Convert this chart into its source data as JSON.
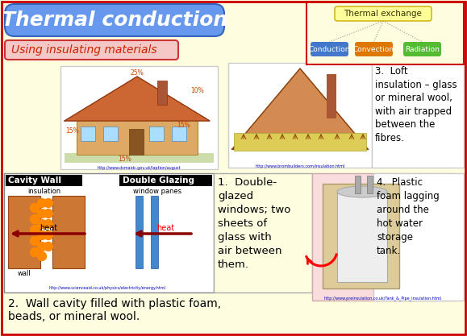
{
  "bg_color": "#FEFDE0",
  "title": "Thermal conduction",
  "title_bg": "#6699EE",
  "title_fg": "#FFFFFF",
  "subtitle": "Using insulating materials",
  "subtitle_bg": "#F5C8C8",
  "subtitle_fg": "#CC2200",
  "subtitle_border": "#CC3333",
  "thermal_exchange_label": "Thermal exchange",
  "thermal_exchange_bg": "#FFFF99",
  "thermal_exchange_border": "#CCAA00",
  "conduction_label": "Conduction",
  "conduction_bg": "#4477CC",
  "convection_label": "Convection",
  "convection_bg": "#DD7700",
  "radiation_label": "Radiation",
  "radiation_bg": "#55BB33",
  "text1": "1.  Double-\nglazed\nwindows; two\nsheets of\nglass with\nair between\nthem.",
  "text2": "2.  Wall cavity filled with plastic foam,\nbeads, or mineral wool.",
  "text3": "3.  Loft\ninsulation – glass\nor mineral wool,\nwith air trapped\nbetween the\nfibres.",
  "text4": "4.  Plastic\nfoam lagging\naround the\nhot water\nstorage\ntank.",
  "url1": "http://www.scienceaid.co.uk/physics/electricity/energy.html",
  "url2": "http://www.dsmaidc.gov.uk/laption/august",
  "url3": "http://www.brombuilders.com/insulation.html",
  "url4": "http://www.preinsulation.co.uk/Tank_&_Pipe_insulation.html",
  "outer_border": "#CC0000",
  "section_bg_pink": "#F9DDDD",
  "cavity_label": "Cavity Wall",
  "double_glaze_label": "Double Glazing",
  "insulation_label": "insulation",
  "window_panes_label": "window panes",
  "wall_label": "wall",
  "heat_label": "heat"
}
